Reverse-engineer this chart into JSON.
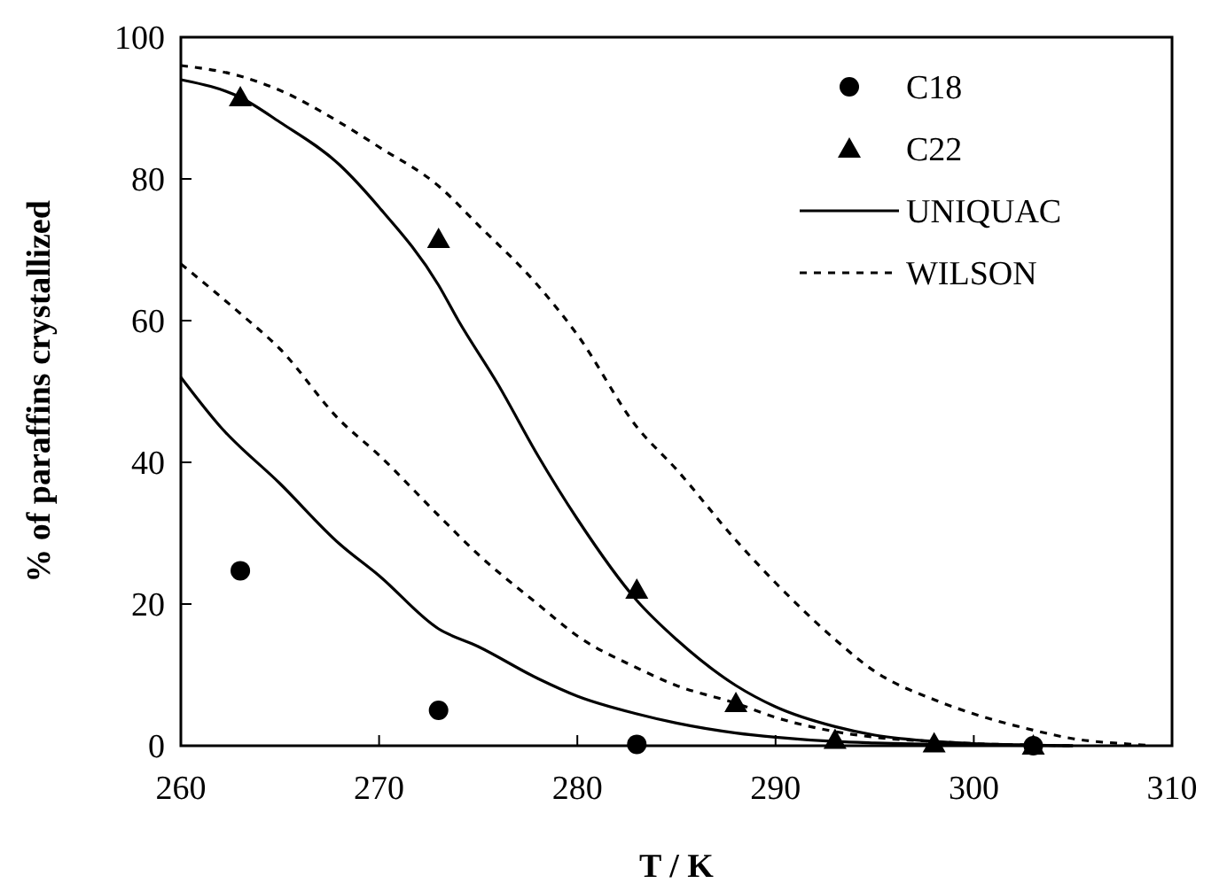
{
  "chart_data": {
    "type": "line",
    "xlabel": "T / K",
    "ylabel": "% of paraffins crystallized",
    "xlim": [
      260,
      310
    ],
    "ylim": [
      0,
      100
    ],
    "xticks": [
      260,
      270,
      280,
      290,
      300,
      310
    ],
    "yticks": [
      0,
      20,
      40,
      60,
      80,
      100
    ],
    "grid": false,
    "legend": "top right",
    "series": [
      {
        "name": "C18",
        "type": "scatter",
        "marker": "circle",
        "color": "#000000",
        "x": [
          263,
          273,
          283,
          303
        ],
        "values": [
          24.7,
          5,
          0.2,
          0
        ]
      },
      {
        "name": "C22",
        "type": "scatter",
        "marker": "triangle",
        "color": "#000000",
        "x": [
          263,
          273,
          283,
          288,
          293,
          298,
          303
        ],
        "values": [
          91.5,
          71.5,
          22,
          6,
          0.8,
          0.3,
          0
        ]
      },
      {
        "name": "UNIQUAC",
        "line_style": "solid",
        "color": "#000000",
        "x": [
          260,
          263,
          265,
          268,
          270,
          273,
          274,
          276,
          278,
          280,
          283,
          285,
          288,
          290,
          293,
          295,
          298,
          300,
          303,
          305
        ],
        "values": [
          94,
          91.5,
          88,
          82,
          76,
          65,
          60,
          51,
          41,
          32,
          20.5,
          15,
          8.5,
          5.5,
          2.7,
          1.5,
          0.6,
          0.3,
          0.1,
          0
        ]
      },
      {
        "name": "WILSON",
        "line_style": "dashed",
        "color": "#000000",
        "x": [
          260,
          263,
          265,
          268,
          270,
          273,
          275,
          278,
          280,
          283,
          285,
          288,
          290,
          293,
          295,
          298,
          300,
          303,
          305,
          308,
          309
        ],
        "values": [
          96,
          94.5,
          92.5,
          88,
          84.5,
          79,
          73.5,
          65,
          58,
          45,
          39,
          29,
          23,
          15,
          10.5,
          6.5,
          4.5,
          2.2,
          1,
          0.2,
          0
        ]
      },
      {
        "line_style": "solid",
        "color": "#000000",
        "x": [
          260,
          262,
          265,
          268,
          270,
          273,
          275,
          278,
          280,
          283,
          285,
          288,
          290,
          293,
          295,
          298,
          300,
          305
        ],
        "values": [
          52,
          45,
          37,
          28.5,
          24,
          16.5,
          14,
          9.5,
          7,
          4.5,
          3.2,
          1.8,
          1.2,
          0.6,
          0.4,
          0.2,
          0.1,
          0
        ]
      },
      {
        "line_style": "dashed",
        "color": "#000000",
        "x": [
          260,
          263,
          265,
          268,
          270,
          273,
          275,
          278,
          280,
          283,
          285,
          288,
          290,
          293,
          295,
          298,
          300,
          303,
          305
        ],
        "values": [
          68,
          61,
          56,
          46,
          41,
          32.5,
          27,
          20,
          15.5,
          11,
          8.5,
          6,
          4,
          2,
          1.2,
          0.6,
          0.3,
          0.1,
          0
        ]
      }
    ]
  }
}
